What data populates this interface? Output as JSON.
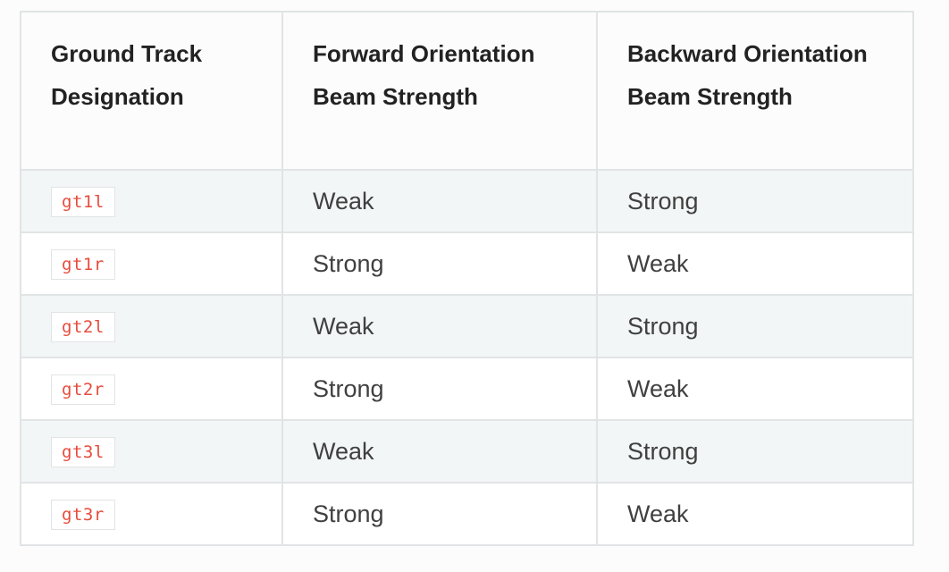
{
  "table": {
    "headers": {
      "designation": {
        "line1": "Ground Track",
        "line2": "Designation"
      },
      "forward": {
        "line1": "Forward Orientation",
        "line2": "Beam Strength"
      },
      "backward": {
        "line1": "Backward Orientation",
        "line2": "Beam Strength"
      }
    },
    "rows": [
      {
        "track": "gt1l",
        "forward": "Weak",
        "backward": "Strong"
      },
      {
        "track": "gt1r",
        "forward": "Strong",
        "backward": "Weak"
      },
      {
        "track": "gt2l",
        "forward": "Weak",
        "backward": "Strong"
      },
      {
        "track": "gt2r",
        "forward": "Strong",
        "backward": "Weak"
      },
      {
        "track": "gt3l",
        "forward": "Weak",
        "backward": "Strong"
      },
      {
        "track": "gt3r",
        "forward": "Strong",
        "backward": "Weak"
      }
    ]
  },
  "colors": {
    "code_text": "#e74c3c",
    "border": "#e1e4e5",
    "stripe": "#f3f6f6"
  }
}
